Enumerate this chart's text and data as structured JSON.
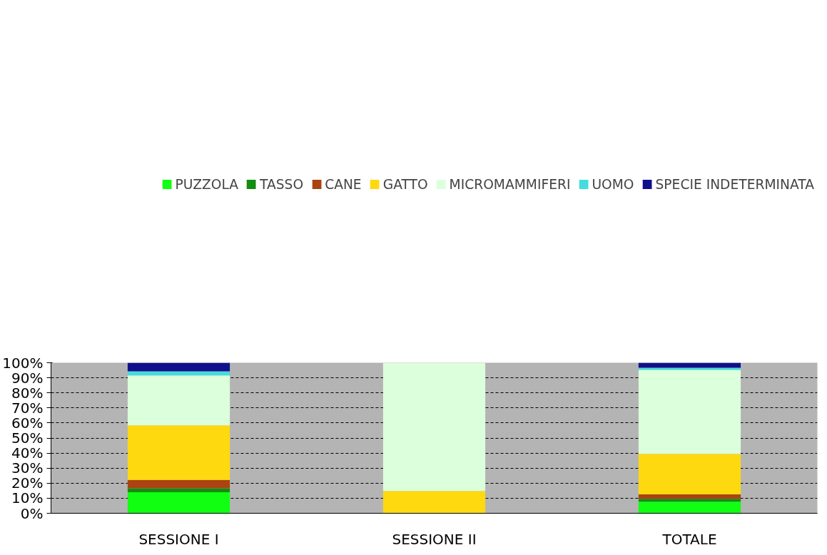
{
  "chart_data": {
    "type": "bar",
    "stacked": true,
    "categories": [
      "SESSIONE I",
      "SESSIONE II",
      "TOTALE"
    ],
    "series": [
      {
        "name": "PUZZOLA",
        "color": "#11ff11",
        "values": [
          14.0,
          0,
          7.7
        ]
      },
      {
        "name": "TASSO",
        "color": "#128c12",
        "values": [
          2.6,
          0,
          1.9
        ]
      },
      {
        "name": "CANE",
        "color": "#aa4410",
        "values": [
          5.5,
          0,
          3.0
        ]
      },
      {
        "name": "GATTO",
        "color": "#ffd910",
        "values": [
          36.3,
          14.8,
          26.8
        ]
      },
      {
        "name": "MICROMAMMIFERI",
        "color": "#dcffdc",
        "values": [
          33.2,
          85.2,
          55.9
        ]
      },
      {
        "name": "UOMO",
        "color": "#44dddd",
        "values": [
          2.7,
          0,
          1.4
        ]
      },
      {
        "name": "SPECIE INDETERMINATA",
        "color": "#10108c",
        "values": [
          5.7,
          0,
          3.3
        ]
      }
    ],
    "ylim": [
      0,
      100
    ],
    "yticks": [
      {
        "value": 0,
        "label": "0%"
      },
      {
        "value": 10,
        "label": "10%"
      },
      {
        "value": 20,
        "label": "20%"
      },
      {
        "value": 30,
        "label": "30%"
      },
      {
        "value": 40,
        "label": "40%"
      },
      {
        "value": 50,
        "label": "50%"
      },
      {
        "value": 60,
        "label": "60%"
      },
      {
        "value": 70,
        "label": "70%"
      },
      {
        "value": 80,
        "label": "80%"
      },
      {
        "value": 90,
        "label": "90%"
      },
      {
        "value": 100,
        "label": "100%"
      }
    ],
    "grid": "y",
    "legend": "top"
  }
}
